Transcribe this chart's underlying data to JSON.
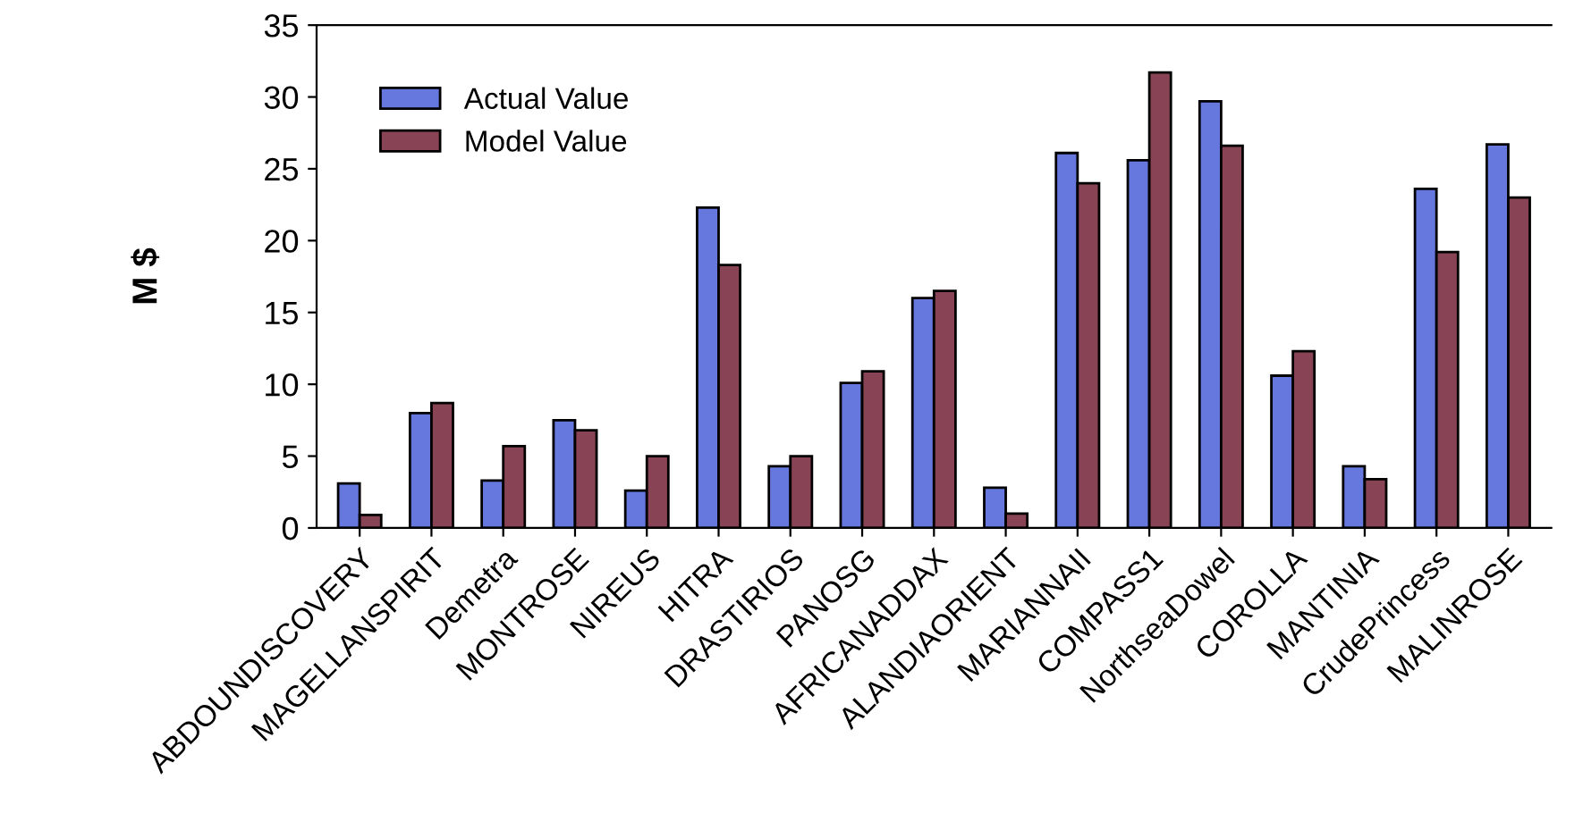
{
  "chart_data": {
    "type": "bar",
    "ylabel": "M $",
    "categories": [
      "ABDOUNDISCOVERY",
      "MAGELLANSPIRIT",
      "Demetra",
      "MONTROSE",
      "NIREUS",
      "HITRA",
      "DRASTIRIOS",
      "PANOSG",
      "AFRICANADDAX",
      "ALANDIAORIENT",
      "MARIANNAII",
      "COMPASS1",
      "NorthseaDowel",
      "COROLLA",
      "MANTINIA",
      "CrudePrincess",
      "MALINROSE"
    ],
    "series": [
      {
        "name": "Actual Value",
        "color": "#6677dd",
        "values": [
          3.1,
          8.0,
          3.3,
          7.5,
          2.6,
          22.3,
          4.3,
          10.1,
          16.0,
          2.8,
          26.1,
          25.6,
          29.7,
          10.6,
          4.3,
          23.6,
          26.7
        ]
      },
      {
        "name": "Model Value",
        "color": "#884455",
        "values": [
          0.9,
          8.7,
          5.7,
          6.8,
          5.0,
          18.3,
          5.0,
          10.9,
          16.5,
          1.0,
          24.0,
          31.7,
          26.6,
          12.3,
          3.4,
          19.2,
          23.0
        ]
      }
    ],
    "ylim": [
      0,
      35
    ],
    "yticks": [
      0,
      5,
      10,
      15,
      20,
      25,
      30,
      35
    ],
    "grid": false,
    "legend": "top left"
  }
}
